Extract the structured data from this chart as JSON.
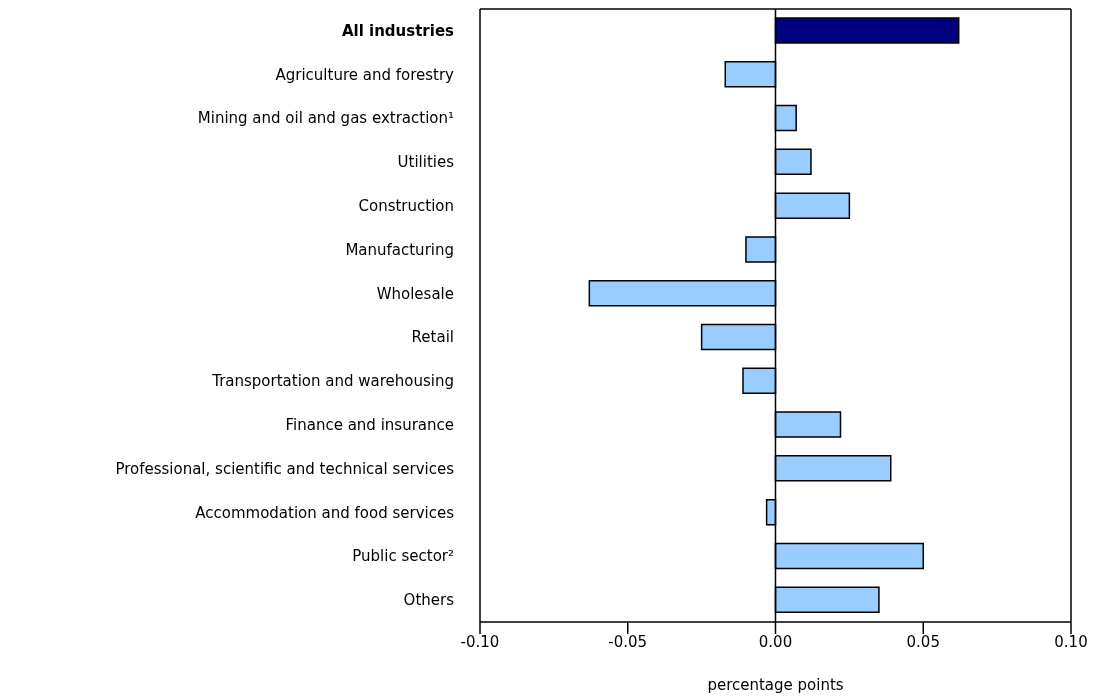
{
  "chart_data": {
    "type": "bar",
    "orientation": "horizontal",
    "xlabel": "percentage points",
    "categories": [
      "All industries",
      "Agriculture and forestry",
      "Mining and oil and gas extraction¹",
      "Utilities",
      "Construction",
      "Manufacturing",
      "Wholesale",
      "Retail",
      "Transportation and warehousing",
      "Finance and insurance",
      "Professional, scientific and technical services",
      "Accommodation and food services",
      "Public sector²",
      "Others"
    ],
    "values": [
      0.062,
      -0.017,
      0.007,
      0.012,
      0.025,
      -0.01,
      -0.063,
      -0.025,
      -0.011,
      0.022,
      0.039,
      -0.003,
      0.05,
      0.035
    ],
    "colors": [
      "#000080",
      "#99ccff",
      "#99ccff",
      "#99ccff",
      "#99ccff",
      "#99ccff",
      "#99ccff",
      "#99ccff",
      "#99ccff",
      "#99ccff",
      "#99ccff",
      "#99ccff",
      "#99ccff",
      "#99ccff"
    ],
    "xlim": [
      -0.1,
      0.1
    ],
    "xticks": [
      {
        "value": -0.1,
        "label": "-0.10"
      },
      {
        "value": -0.05,
        "label": "-0.05"
      },
      {
        "value": 0,
        "label": "0.00"
      },
      {
        "value": 0.05,
        "label": "0.05"
      },
      {
        "value": 0.1,
        "label": "0.10"
      }
    ],
    "ref_lines": [
      {
        "axis": "x",
        "value": 0,
        "color": "#000000"
      }
    ],
    "grid": false
  }
}
